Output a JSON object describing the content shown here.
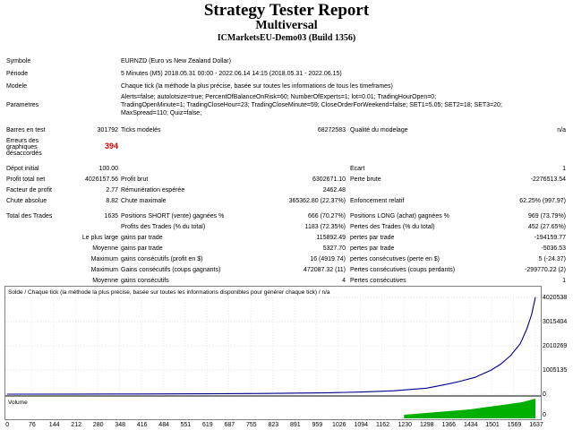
{
  "header": {
    "title": "Strategy Tester Report",
    "ea_name": "Multiversal",
    "server": "ICMarketsEU-Demo03 (Build 1356)"
  },
  "settings": {
    "symbol_label": "Symbole",
    "symbol_value": "EURNZD (Euro vs New Zealand Dollar)",
    "period_label": "Période",
    "period_value": "5 Minutes (M5) 2018.05.31 00:00 - 2022.06.14 14:15 (2018.05.31 - 2022.06.15)",
    "model_label": "Modele",
    "model_value": "Chaque tick (la méthode la plus précise, basée sur toutes les informations de tous les timeframes)",
    "params_label": "Parametres",
    "params_lines": [
      "Alerts=false; autolotsize=true; PercentOfBalanceOnRisk=60; NumberOfExperts=1; lot=0.01; TradingHourOpen=0;",
      "TradingOpenMinute=1; TradingCloseHour=23; TradingCloseMinute=59; CloseOrderForWeekend=false; SET1=5.05; SET2=18; SET3=20;",
      "MaxSpread=110; Quiz=false;"
    ]
  },
  "stats": {
    "bars_label": "Barres en test",
    "bars_value": "301792",
    "ticks_label": "Ticks modelés",
    "ticks_value": "68272583",
    "quality_label": "Qualité du modelage",
    "quality_value": "n/a",
    "errors_label_lines": [
      "Erreurs des",
      "graphiques",
      "désaccordés"
    ],
    "errors_value": "394",
    "deposit_label": "Dépot initial",
    "deposit_value": "100.00",
    "spread_label": "Ecart",
    "spread_value": "1",
    "net_label": "Profit total net",
    "net_value": "4026157.56",
    "gross_profit_label": "Profit brut",
    "gross_profit_value": "6302671.10",
    "gross_loss_label": "Perte brute",
    "gross_loss_value": "-2276513.54",
    "pf_label": "Facteur de profit",
    "pf_value": "2.77",
    "payoff_label": "Rémunération espérée",
    "payoff_value": "2462.48",
    "abs_dd_label": "Chute absolue",
    "abs_dd_value": "8.82",
    "max_dd_label": "Chute maximale",
    "max_dd_value": "365362.80 (22.37%)",
    "rel_dd_label": "Enfoncement relatif",
    "rel_dd_value": "62.25% (997.97)",
    "trades_label": "Total des Trades",
    "trades_value": "1635",
    "short_label": "Positions SHORT (vente) gagnées %",
    "short_value": "666 (70.27%)",
    "long_label": "Positions LONG (achat) gagnées %",
    "long_value": "969 (73.79%)",
    "profit_trades_label": "Profits des Trades (% du total)",
    "profit_trades_value": "1183 (72.35%)",
    "loss_trades_label": "Pertes des Trades (% du total)",
    "loss_trades_value": "452 (27.65%)",
    "largest_label": "Le plus large",
    "largest_gain_label": "gains par trade",
    "largest_gain_value": "115892.49",
    "largest_loss_label": "pertes par trade",
    "largest_loss_value": "-194159.77",
    "avg_label": "Moyenne",
    "avg_gain_label": "gains par trade",
    "avg_gain_value": "5327.70",
    "avg_loss_label": "pertes par trade",
    "avg_loss_value": "-5036.53",
    "max1_label": "Maximum",
    "max_cons_wins_label": "gains consécutifs (profit en $)",
    "max_cons_wins_value": "16 (4919.74)",
    "max_cons_losses_label": "pertes consécutives (perte en $)",
    "max_cons_losses_value": "5 (-24.37)",
    "max2_label": "Maximum",
    "max_cons_profit_label": "Gains consécutifs (coups gagnants)",
    "max_cons_profit_value": "472087.32 (11)",
    "max_cons_loss_label": "Pertes consécutives (coups perdants)",
    "max_cons_loss_value": "-299770.22 (2)",
    "avg2_label": "Moyenne",
    "avg_cons_wins_label": "gains consécutifs",
    "avg_cons_wins_value": "4",
    "avg_cons_losses_label": "Pertes consécutives",
    "avg_cons_losses_value": "1"
  },
  "chart": {
    "caption": "Solde / Chaque tick (la méthode la plus précise, basée sur toutes les informations disponibles pour générer chaque tick) / n/a",
    "volume_label": "Volume",
    "y_ticks": [
      "4020538",
      "3015404",
      "2010269",
      "1005135",
      "0"
    ],
    "x_ticks": [
      "0",
      "76",
      "144",
      "212",
      "280",
      "348",
      "416",
      "484",
      "551",
      "619",
      "687",
      "755",
      "823",
      "891",
      "959",
      "1026",
      "1094",
      "1162",
      "1230",
      "1298",
      "1366",
      "1434",
      "1501",
      "1569",
      "1637"
    ],
    "line_color": "#00008b",
    "volume_color": "#00b000"
  },
  "chart_data": {
    "type": "line",
    "title": "Solde / Chaque tick (la méthode la plus précise, basée sur toutes les informations disponibles pour générer chaque tick) / n/a",
    "xlabel": "",
    "ylabel": "",
    "xlim": [
      0,
      1637
    ],
    "ylim": [
      0,
      4020538
    ],
    "x": [
      0,
      200,
      400,
      600,
      800,
      1000,
      1100,
      1200,
      1300,
      1350,
      1400,
      1450,
      1500,
      1530,
      1560,
      1590,
      1610,
      1625,
      1637
    ],
    "values": [
      100,
      2000,
      6000,
      14000,
      30000,
      60000,
      90000,
      140000,
      250000,
      380000,
      520000,
      700000,
      1000000,
      1250000,
      1600000,
      2100000,
      2700000,
      3300000,
      4026157
    ]
  }
}
